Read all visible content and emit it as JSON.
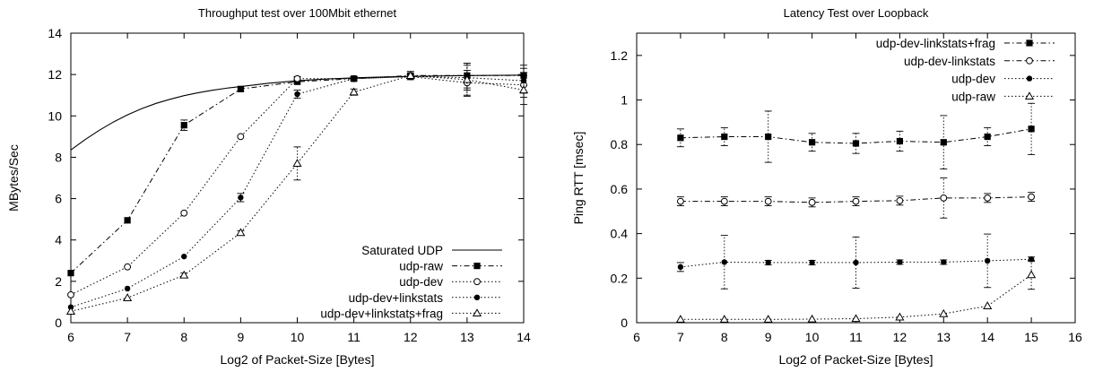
{
  "chart_data": [
    {
      "type": "line",
      "title": "Throughput test over 100Mbit ethernet",
      "xlabel": "Log2 of Packet-Size [Bytes]",
      "ylabel": "MBytes/Sec",
      "xlim": [
        6,
        14
      ],
      "ylim": [
        0,
        14
      ],
      "xticks": [
        6,
        7,
        8,
        9,
        10,
        11,
        12,
        13,
        14
      ],
      "yticks": [
        0,
        2,
        4,
        6,
        8,
        10,
        12,
        14
      ],
      "legend_position": "bottom-right",
      "series": [
        {
          "name": "Saturated UDP",
          "style": "solid",
          "x": [
            6,
            6.25,
            6.5,
            6.75,
            7,
            7.25,
            7.5,
            7.75,
            8,
            8.25,
            8.5,
            8.75,
            9,
            9.5,
            10,
            10.5,
            11,
            11.5,
            12,
            12.5,
            13,
            13.5,
            14
          ],
          "y": [
            8.35,
            8.85,
            9.3,
            9.7,
            10.05,
            10.35,
            10.6,
            10.8,
            10.98,
            11.12,
            11.24,
            11.34,
            11.42,
            11.58,
            11.7,
            11.78,
            11.84,
            11.88,
            11.91,
            11.93,
            11.95,
            11.96,
            11.97
          ]
        },
        {
          "name": "udp-raw",
          "style": "dash-dot",
          "marker": "filled-square",
          "x": [
            6,
            7,
            8,
            9,
            10,
            11,
            12,
            13,
            14
          ],
          "y": [
            2.4,
            4.95,
            9.55,
            11.3,
            11.65,
            11.8,
            11.95,
            11.95,
            11.95
          ],
          "err": [
            0,
            0,
            0.25,
            0.1,
            0.1,
            0.1,
            0.1,
            0.6,
            0.5
          ]
        },
        {
          "name": "udp-dev",
          "style": "dotted",
          "marker": "open-circle",
          "x": [
            6,
            7,
            8,
            9,
            10,
            11,
            12,
            13,
            14
          ],
          "y": [
            1.35,
            2.7,
            5.3,
            9.0,
            11.8,
            11.8,
            11.9,
            11.6,
            11.5
          ],
          "err": [
            0,
            0,
            0,
            0,
            0.1,
            0.1,
            0.1,
            0.6,
            0.6
          ]
        },
        {
          "name": "udp-dev+linkstats",
          "style": "dotted",
          "marker": "filled-circle",
          "x": [
            6,
            7,
            8,
            9,
            10,
            11,
            12,
            13,
            14
          ],
          "y": [
            0.75,
            1.65,
            3.2,
            6.05,
            11.05,
            11.8,
            11.9,
            11.85,
            11.7
          ],
          "err": [
            0,
            0,
            0,
            0.2,
            0.2,
            0.1,
            0.1,
            0.6,
            0.6
          ]
        },
        {
          "name": "udp-dev+linkstats+frag",
          "style": "dotted",
          "marker": "open-triangle",
          "x": [
            6,
            7,
            8,
            9,
            10,
            11,
            12,
            13,
            14
          ],
          "y": [
            0.55,
            1.2,
            2.3,
            4.35,
            7.7,
            11.15,
            11.95,
            11.75,
            11.25
          ],
          "err": [
            0,
            0,
            0.1,
            0.1,
            0.8,
            0.15,
            0.2,
            0.8,
            0.7
          ]
        }
      ]
    },
    {
      "type": "line",
      "title": "Latency Test over Loopback",
      "xlabel": "Log2 of Packet-Size [Bytes]",
      "ylabel": "Ping RTT [msec]",
      "xlim": [
        6,
        16
      ],
      "ylim": [
        0,
        1.3
      ],
      "xticks": [
        6,
        7,
        8,
        9,
        10,
        11,
        12,
        13,
        14,
        15,
        16
      ],
      "yticks": [
        0,
        0.2,
        0.4,
        0.6,
        0.8,
        1,
        1.2
      ],
      "legend_position": "top-right",
      "series": [
        {
          "name": "udp-dev-linkstats+frag",
          "style": "dash-dot",
          "marker": "filled-square",
          "x": [
            7,
            8,
            9,
            10,
            11,
            12,
            13,
            14,
            15
          ],
          "y": [
            0.83,
            0.835,
            0.835,
            0.81,
            0.805,
            0.815,
            0.81,
            0.835,
            0.87
          ],
          "err": [
            0.04,
            0.04,
            0.115,
            0.04,
            0.045,
            0.045,
            0.12,
            0.04,
            0.115
          ]
        },
        {
          "name": "udp-dev-linkstats",
          "style": "dash-dot",
          "marker": "open-circle",
          "x": [
            7,
            8,
            9,
            10,
            11,
            12,
            13,
            14,
            15
          ],
          "y": [
            0.545,
            0.545,
            0.545,
            0.54,
            0.545,
            0.548,
            0.56,
            0.56,
            0.565
          ],
          "err": [
            0.02,
            0.02,
            0.02,
            0.02,
            0.02,
            0.02,
            0.09,
            0.02,
            0.02
          ]
        },
        {
          "name": "udp-dev",
          "style": "dotted",
          "marker": "filled-circle",
          "x": [
            7,
            8,
            9,
            10,
            11,
            12,
            13,
            14,
            15
          ],
          "y": [
            0.25,
            0.272,
            0.27,
            0.27,
            0.27,
            0.272,
            0.272,
            0.278,
            0.285
          ],
          "err": [
            0.02,
            0.12,
            0.01,
            0.01,
            0.115,
            0.01,
            0.01,
            0.12,
            0.01
          ]
        },
        {
          "name": "udp-raw",
          "style": "dotted",
          "marker": "open-triangle",
          "x": [
            7,
            8,
            9,
            10,
            11,
            12,
            13,
            14,
            15
          ],
          "y": [
            0.015,
            0.015,
            0.015,
            0.016,
            0.018,
            0.025,
            0.04,
            0.075,
            0.215
          ],
          "err": [
            0,
            0,
            0,
            0,
            0,
            0,
            0,
            0,
            0.065
          ]
        }
      ]
    }
  ]
}
